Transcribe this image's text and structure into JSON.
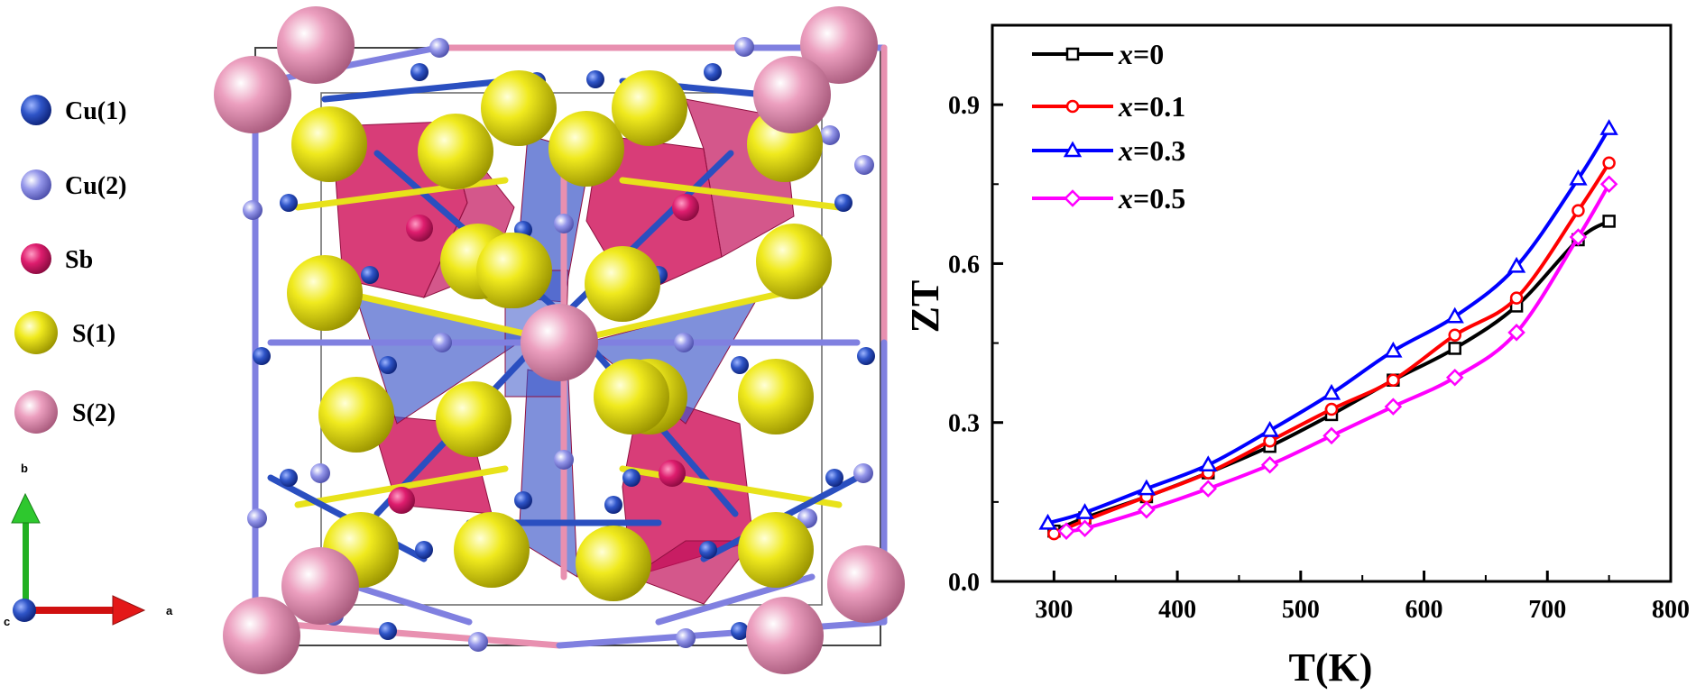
{
  "structure": {
    "legend": [
      {
        "label": "Cu(1)",
        "color": "#2a4fc0"
      },
      {
        "label": "Cu(2)",
        "color": "#8a8ce6"
      },
      {
        "label": "Sb",
        "color": "#d81b6a"
      },
      {
        "label": "S(1)",
        "color": "#e8e21a"
      },
      {
        "label": "S(2)",
        "color": "#e89ab8"
      }
    ],
    "axes": {
      "b": "b",
      "a": "a",
      "c": "c"
    }
  },
  "chart_data": {
    "type": "line",
    "title": "",
    "xlabel": "T(K)",
    "ylabel": "ZT",
    "xlim": [
      250,
      800
    ],
    "ylim": [
      0,
      1.05
    ],
    "xticks": [
      "300",
      "400",
      "500",
      "600",
      "700",
      "800"
    ],
    "yticks": [
      "0.0",
      "0.3",
      "0.6",
      "0.9"
    ],
    "grid": false,
    "legend_position": "top-left",
    "series": [
      {
        "name": "x=0",
        "name_var": "x",
        "name_rest": "=0",
        "color": "#000000",
        "marker": "square",
        "x": [
          300,
          325,
          375,
          425,
          475,
          525,
          575,
          625,
          675,
          725,
          750
        ],
        "y": [
          0.095,
          0.12,
          0.16,
          0.205,
          0.255,
          0.315,
          0.38,
          0.44,
          0.52,
          0.645,
          0.68
        ]
      },
      {
        "name": "x=0.1",
        "name_var": "x",
        "name_rest": "=0.1",
        "color": "#ff0000",
        "marker": "circle",
        "x": [
          300,
          325,
          375,
          425,
          475,
          525,
          575,
          625,
          675,
          725,
          750
        ],
        "y": [
          0.09,
          0.115,
          0.16,
          0.205,
          0.265,
          0.325,
          0.38,
          0.465,
          0.535,
          0.7,
          0.79
        ]
      },
      {
        "name": "x=0.3",
        "name_var": "x",
        "name_rest": "=0.3",
        "color": "#0000ff",
        "marker": "triangle",
        "x": [
          295,
          325,
          375,
          425,
          475,
          525,
          575,
          625,
          675,
          725,
          750
        ],
        "y": [
          0.11,
          0.13,
          0.175,
          0.22,
          0.285,
          0.355,
          0.435,
          0.5,
          0.595,
          0.76,
          0.855
        ]
      },
      {
        "name": "x=0.5",
        "name_var": "x",
        "name_rest": "=0.5",
        "color": "#ff00ff",
        "marker": "diamond",
        "x": [
          310,
          325,
          375,
          425,
          475,
          525,
          575,
          625,
          675,
          725,
          750
        ],
        "y": [
          0.095,
          0.1,
          0.135,
          0.175,
          0.22,
          0.275,
          0.33,
          0.385,
          0.47,
          0.65,
          0.75
        ]
      }
    ]
  }
}
